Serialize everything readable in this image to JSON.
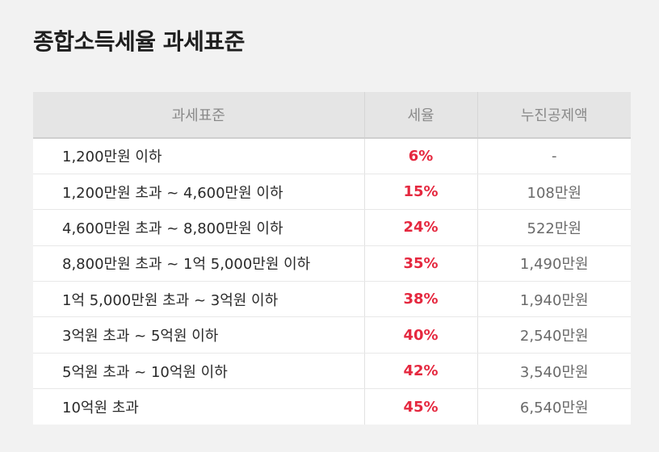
{
  "title": "종합소득세율 과세표준",
  "table": {
    "headers": [
      "과세표준",
      "세율",
      "누진공제액"
    ],
    "rows": [
      {
        "bracket": "1,200만원 이하",
        "rate": "6%",
        "deduction": "-"
      },
      {
        "bracket": "1,200만원 초과 ~ 4,600만원 이하",
        "rate": "15%",
        "deduction": "108만원"
      },
      {
        "bracket": "4,600만원 초과 ~ 8,800만원 이하",
        "rate": "24%",
        "deduction": "522만원"
      },
      {
        "bracket": "8,800만원 초과 ~ 1억 5,000만원 이하",
        "rate": "35%",
        "deduction": "1,490만원"
      },
      {
        "bracket": "1억 5,000만원 초과 ~ 3억원 이하",
        "rate": "38%",
        "deduction": "1,940만원"
      },
      {
        "bracket": "3억원 초과 ~ 5억원 이하",
        "rate": "40%",
        "deduction": "2,540만원"
      },
      {
        "bracket": "5억원 초과 ~ 10억원 이하",
        "rate": "42%",
        "deduction": "3,540만원"
      },
      {
        "bracket": "10억원 초과",
        "rate": "45%",
        "deduction": "6,540만원"
      }
    ]
  },
  "colors": {
    "rate_text": "#e5283f",
    "header_background": "#e5e5e5",
    "page_background": "#f2f2f2"
  }
}
